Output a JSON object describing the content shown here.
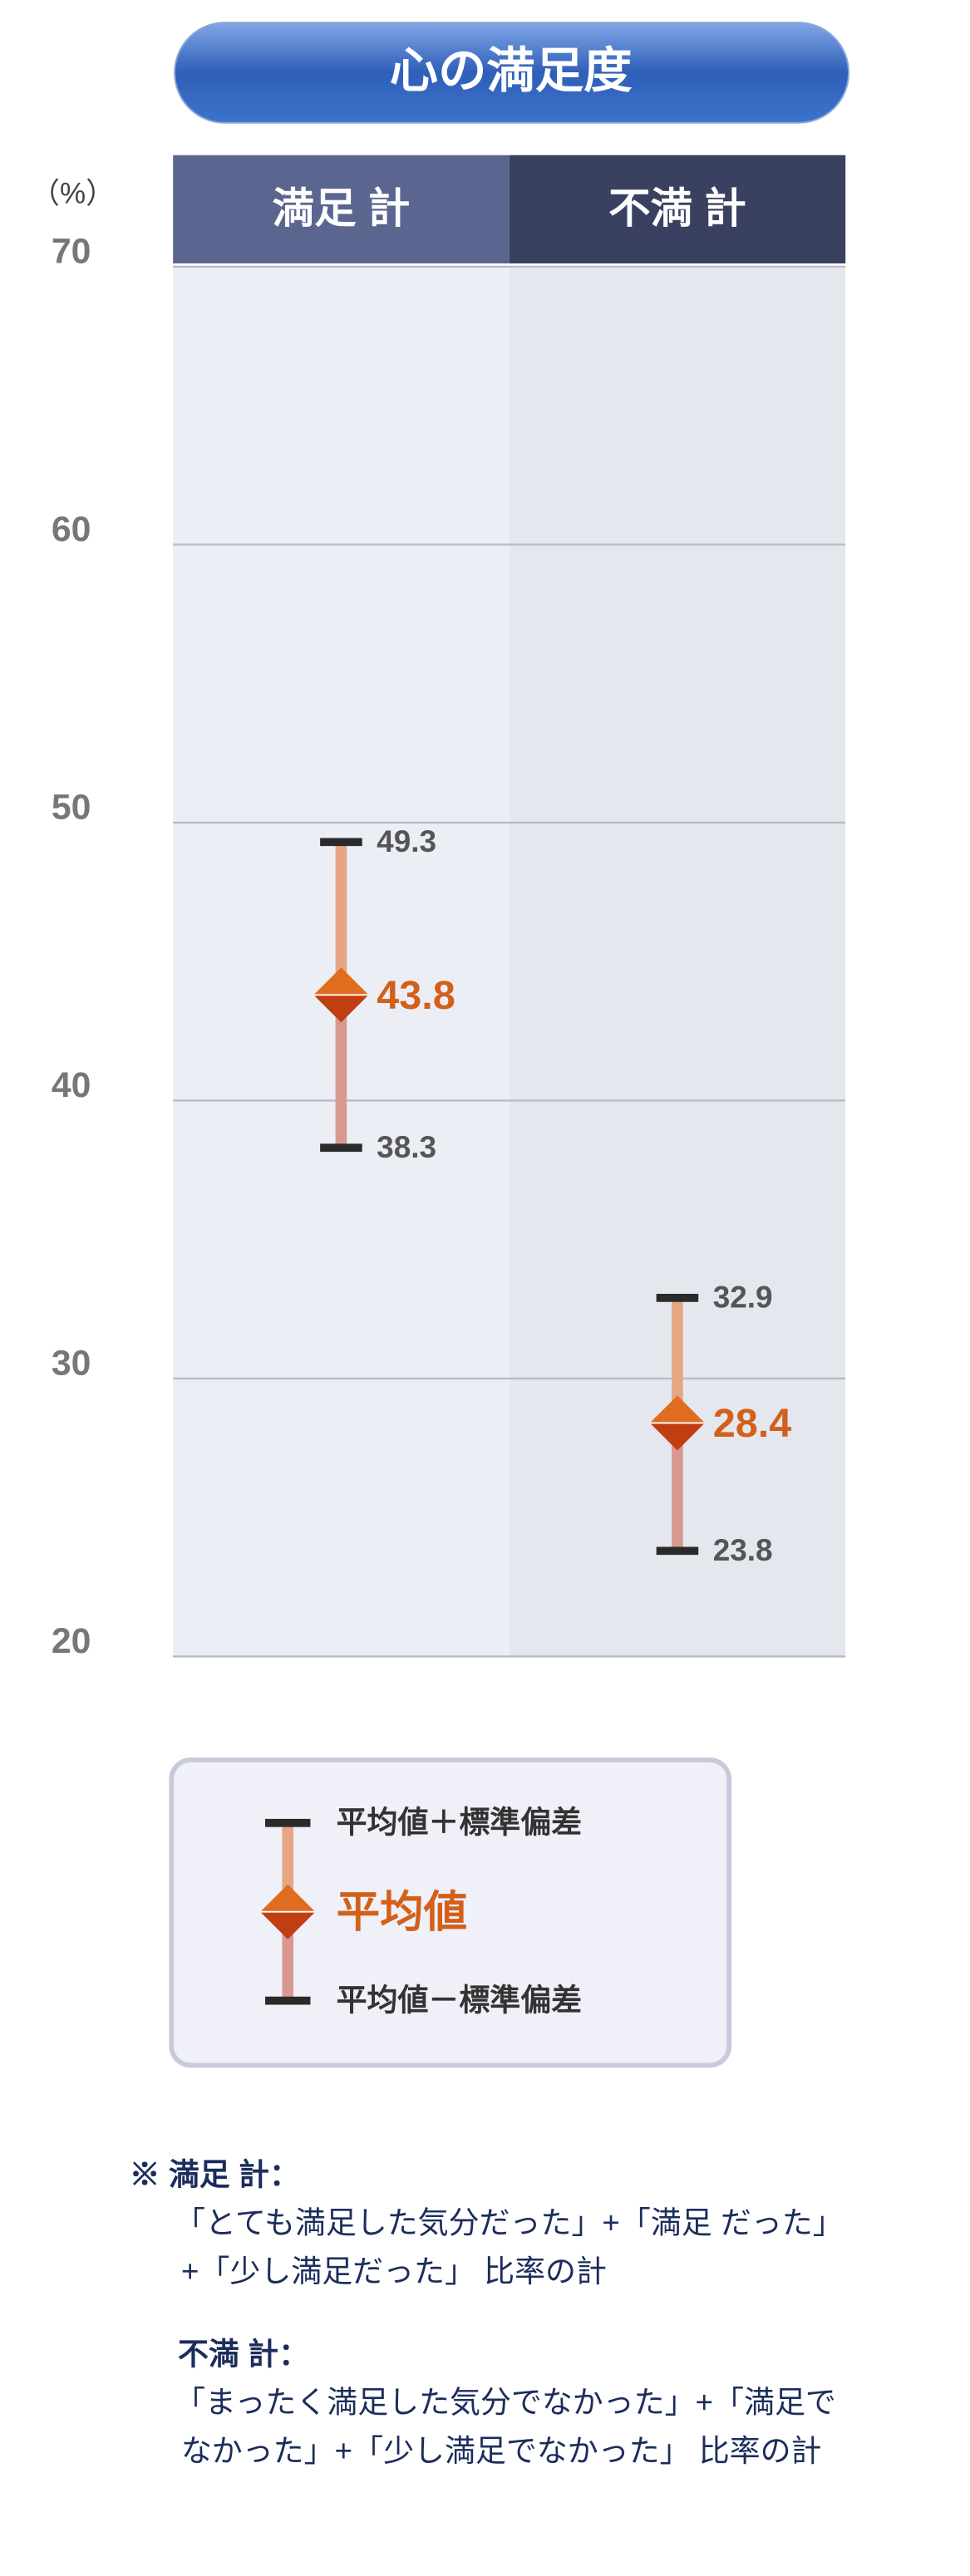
{
  "chart_data": {
    "type": "errorbar",
    "title": "心の満足度",
    "unit_label": "（%）",
    "categories": [
      "満足 計",
      "不満 計"
    ],
    "series": [
      {
        "name": "平均値",
        "color": "#d2601a",
        "values": [
          43.8,
          28.4
        ],
        "upper": [
          49.3,
          32.9
        ],
        "lower": [
          38.3,
          23.8
        ]
      }
    ],
    "ylim": [
      20,
      70
    ],
    "yticks": [
      20,
      30,
      40,
      50,
      60,
      70
    ],
    "grid": true,
    "legend_labels": {
      "upper": "平均値＋標準偏差",
      "lower": "平均値－標準偏差"
    },
    "notes": [
      {
        "label": "※ 満足 計：",
        "lines": [
          "「とても満足した気分だった」+「満足 だった」",
          "+「少し満足だった」 比率の計"
        ]
      },
      {
        "label": "不満 計：",
        "lines": [
          "「まったく満足した気分でなかった」+「満足で",
          "なかった」+「少し満足でなかった」 比率の計"
        ]
      }
    ]
  }
}
